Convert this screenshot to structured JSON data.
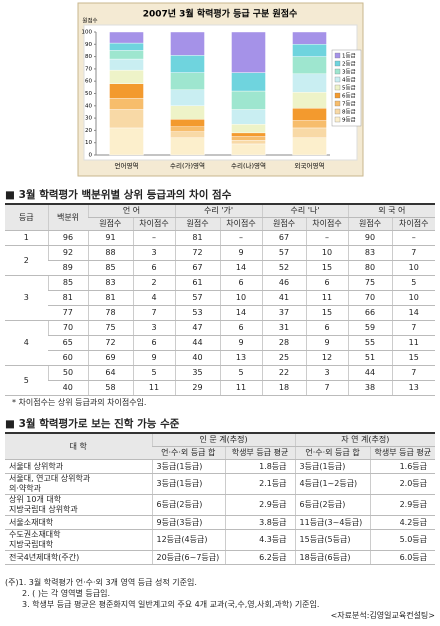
{
  "chart_data": {
    "type": "bar",
    "stacked": true,
    "title": "2007년 3월 학력평가 등급 구분 원점수",
    "y_label": "원점수",
    "categories": [
      "언어영역",
      "수리(가)영역",
      "수리(나)영역",
      "외국어영역"
    ],
    "series": [
      {
        "name": "1등급",
        "color": "#a592e8",
        "values": [
          9,
          19,
          33,
          10
        ]
      },
      {
        "name": "2등급",
        "color": "#6fd4de",
        "values": [
          6,
          14,
          15,
          10
        ]
      },
      {
        "name": "3등급",
        "color": "#9ee6cf",
        "values": [
          7,
          14,
          15,
          14
        ]
      },
      {
        "name": "4등급",
        "color": "#c9eef2",
        "values": [
          9,
          13,
          12,
          15
        ]
      },
      {
        "name": "5등급",
        "color": "#eef3c8",
        "values": [
          11,
          11,
          7,
          13
        ]
      },
      {
        "name": "6등급",
        "color": "#f39a2e",
        "values": [
          12,
          6,
          3,
          10
        ]
      },
      {
        "name": "7등급",
        "color": "#f7bd6c",
        "values": [
          9,
          4,
          3,
          6
        ]
      },
      {
        "name": "8등급",
        "color": "#f8d9a6",
        "values": [
          15,
          5,
          3,
          8
        ]
      },
      {
        "name": "9등급",
        "color": "#fcefcc",
        "values": [
          22,
          14,
          9,
          14
        ]
      }
    ],
    "ylim": [
      0,
      100
    ],
    "yticks": [
      0,
      10,
      20,
      30,
      40,
      50,
      60,
      70,
      80,
      90,
      100
    ],
    "grid": false,
    "legend": "right"
  },
  "section1": {
    "heading": "■ 3월 학력평가 백분위별 상위 등급과의 차이 점수",
    "table": {
      "grade_header": "등급",
      "percentile_header": "백분위",
      "subjects": [
        "언 어",
        "수리 '가'",
        "수리 '나'",
        "외 국 어"
      ],
      "subheaders": [
        "원점수",
        "차이점수",
        "원점수",
        "차이점수",
        "원점수",
        "차이점수",
        "원점수",
        "차이점수"
      ],
      "groups": [
        {
          "grade": 1,
          "rows": [
            [
              96,
              91,
              "–",
              81,
              "–",
              67,
              "–",
              90,
              "–"
            ]
          ]
        },
        {
          "grade": 2,
          "rows": [
            [
              92,
              88,
              3,
              72,
              9,
              57,
              10,
              83,
              7
            ],
            [
              89,
              85,
              6,
              67,
              14,
              52,
              15,
              80,
              10
            ]
          ]
        },
        {
          "grade": 3,
          "rows": [
            [
              85,
              83,
              2,
              61,
              6,
              46,
              6,
              75,
              5
            ],
            [
              81,
              81,
              4,
              57,
              10,
              41,
              11,
              70,
              10
            ],
            [
              77,
              78,
              7,
              53,
              14,
              37,
              15,
              66,
              14
            ]
          ]
        },
        {
          "grade": 4,
          "rows": [
            [
              70,
              75,
              3,
              47,
              6,
              31,
              6,
              59,
              7
            ],
            [
              65,
              72,
              6,
              44,
              9,
              28,
              9,
              55,
              11
            ],
            [
              60,
              69,
              9,
              40,
              13,
              25,
              12,
              51,
              15
            ]
          ]
        },
        {
          "grade": 5,
          "rows": [
            [
              50,
              64,
              5,
              35,
              5,
              22,
              3,
              44,
              7
            ],
            [
              40,
              58,
              11,
              29,
              11,
              18,
              7,
              38,
              13
            ]
          ]
        }
      ]
    },
    "note": "* 차이점수는 상위 등급과의 차이점수임."
  },
  "section2": {
    "heading": "■ 3월 학력평가로 보는 진학 가능 수준",
    "table": {
      "univ_header": "대 학",
      "groups": [
        "인 문 계(추정)",
        "자 연 계(추정)"
      ],
      "subheaders": [
        "언·수·외 등급 합",
        "학생부 등급 평균",
        "언·수·외 등급 합",
        "학생부 등급 평균"
      ],
      "rows": [
        {
          "univ": [
            "서울대 상위학과"
          ],
          "cells": [
            "3등급(1등급)",
            "1.8등급",
            "3등급(1등급)",
            "1.6등급"
          ]
        },
        {
          "univ": [
            "서울대, 연고대 상위학과",
            "의·약학과"
          ],
          "cells": [
            "3등급(1등급)",
            "2.1등급",
            "4등급(1~2등급)",
            "2.0등급"
          ]
        },
        {
          "univ": [
            "상위 10개 대학",
            "지방국립대 상위학과"
          ],
          "cells": [
            "6등급(2등급)",
            "2.9등급",
            "6등급(2등급)",
            "2.9등급"
          ]
        },
        {
          "univ": [
            "서울소재대학"
          ],
          "cells": [
            "9등급(3등급)",
            "3.8등급",
            "11등급(3~4등급)",
            "4.2등급"
          ]
        },
        {
          "univ": [
            "수도권소재대학",
            "지방국립대학"
          ],
          "cells": [
            "12등급(4등급)",
            "4.3등급",
            "15등급(5등급)",
            "5.0등급"
          ]
        },
        {
          "univ": [
            "전국4년제대학(주간)"
          ],
          "cells": [
            "20등급(6~7등급)",
            "6.2등급",
            "18등급(6등급)",
            "6.0등급"
          ]
        }
      ]
    },
    "notes": [
      "(주)1. 3월 학력평가 언·수·외 3개 영역 등급 성적 기준임.",
      "2. ( )는 각 영역별 등급임.",
      "3. 학생부 등급 평균은 평준화지역 일반계고의 주요 4개 교과(국,수,영,사회,과학) 기준임."
    ],
    "source": "<자료분석:김영일교육컨설팅>"
  }
}
